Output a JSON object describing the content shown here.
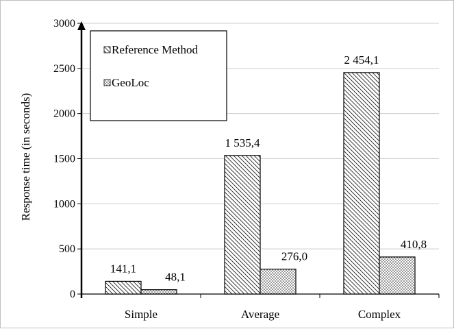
{
  "chart_data": {
    "type": "bar",
    "categories": [
      "Simple",
      "Average",
      "Complex"
    ],
    "series": [
      {
        "name": "Reference Method",
        "values": [
          141.1,
          1535.4,
          2454.1
        ],
        "labels": [
          "141,1",
          "1 535,4",
          "2 454,1"
        ],
        "pattern": "diagonal-hatch"
      },
      {
        "name": "GeoLoc",
        "values": [
          48.1,
          276.0,
          410.8
        ],
        "labels": [
          "48,1",
          "276,0",
          "410,8"
        ],
        "pattern": "dotted"
      }
    ],
    "title": "",
    "xlabel": "",
    "ylabel": "Response  time (in seconds)",
    "ylim": [
      0,
      3000
    ],
    "yticks": [
      0,
      500,
      1000,
      1500,
      2000,
      2500,
      3000
    ],
    "grid": true,
    "legend": "top-left"
  }
}
